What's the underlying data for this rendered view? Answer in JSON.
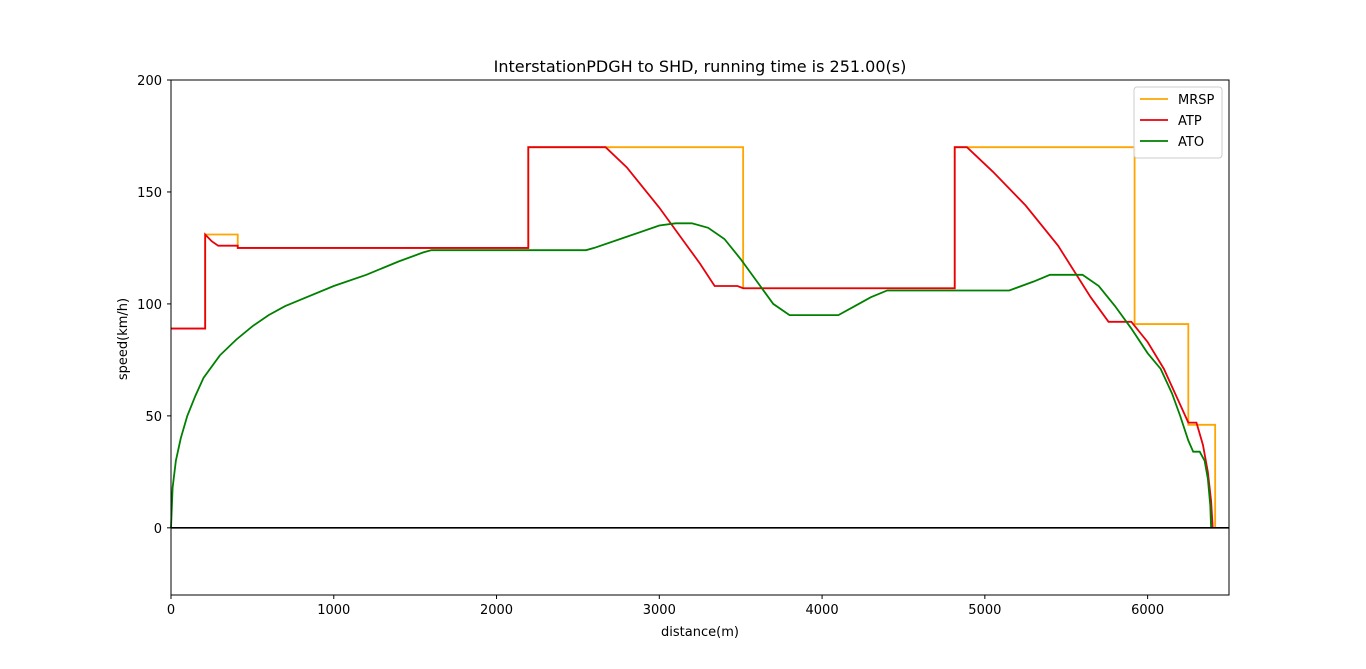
{
  "chart_data": {
    "type": "line",
    "title": "InterstationPDGH to SHD, running time is 251.00(s)",
    "xlabel": "distance(m)",
    "ylabel": "speed(km/h)",
    "xlim": [
      0,
      6500
    ],
    "ylim": [
      -30,
      200
    ],
    "xticks": [
      0,
      1000,
      2000,
      3000,
      4000,
      5000,
      6000
    ],
    "yticks": [
      0,
      50,
      100,
      150,
      200
    ],
    "legend_position": "top-right",
    "grid": false,
    "zero_line": true,
    "series": [
      {
        "name": "MRSP",
        "color": "#ffa500",
        "style": "step",
        "points": [
          [
            0,
            89
          ],
          [
            210,
            89
          ],
          [
            210,
            131
          ],
          [
            410,
            131
          ],
          [
            410,
            125
          ],
          [
            2195,
            125
          ],
          [
            2195,
            170
          ],
          [
            3515,
            170
          ],
          [
            3515,
            107
          ],
          [
            4815,
            107
          ],
          [
            4815,
            170
          ],
          [
            5920,
            170
          ],
          [
            5920,
            91
          ],
          [
            6250,
            91
          ],
          [
            6250,
            46
          ],
          [
            6415,
            46
          ],
          [
            6415,
            0
          ]
        ]
      },
      {
        "name": "ATP",
        "color": "#e8000b",
        "style": "step",
        "points": [
          [
            0,
            89
          ],
          [
            210,
            89
          ],
          [
            210,
            131
          ],
          [
            250,
            128
          ],
          [
            290,
            126
          ],
          [
            410,
            126
          ],
          [
            410,
            125
          ],
          [
            2195,
            125
          ],
          [
            2195,
            170
          ],
          [
            2670,
            170
          ],
          [
            2800,
            161
          ],
          [
            3000,
            143
          ],
          [
            3150,
            128
          ],
          [
            3250,
            118
          ],
          [
            3340,
            108
          ],
          [
            3480,
            108
          ],
          [
            3515,
            107
          ],
          [
            4815,
            107
          ],
          [
            4815,
            170
          ],
          [
            4890,
            170
          ],
          [
            5050,
            159
          ],
          [
            5250,
            144
          ],
          [
            5450,
            126
          ],
          [
            5650,
            103
          ],
          [
            5760,
            92
          ],
          [
            5900,
            92
          ],
          [
            6000,
            83
          ],
          [
            6100,
            71
          ],
          [
            6200,
            55
          ],
          [
            6250,
            47
          ],
          [
            6300,
            47
          ],
          [
            6340,
            37
          ],
          [
            6370,
            25
          ],
          [
            6390,
            12
          ],
          [
            6400,
            0
          ]
        ]
      },
      {
        "name": "ATO",
        "color": "#008000",
        "style": "line",
        "points": [
          [
            0,
            0
          ],
          [
            10,
            18
          ],
          [
            30,
            30
          ],
          [
            60,
            40
          ],
          [
            100,
            50
          ],
          [
            150,
            59
          ],
          [
            200,
            67
          ],
          [
            300,
            77
          ],
          [
            400,
            84
          ],
          [
            500,
            90
          ],
          [
            600,
            95
          ],
          [
            700,
            99
          ],
          [
            800,
            102
          ],
          [
            1000,
            108
          ],
          [
            1200,
            113
          ],
          [
            1400,
            119
          ],
          [
            1550,
            123
          ],
          [
            1600,
            124
          ],
          [
            2550,
            124
          ],
          [
            2600,
            125
          ],
          [
            2800,
            130
          ],
          [
            3000,
            135
          ],
          [
            3100,
            136
          ],
          [
            3200,
            136
          ],
          [
            3300,
            134
          ],
          [
            3400,
            129
          ],
          [
            3500,
            120
          ],
          [
            3600,
            110
          ],
          [
            3700,
            100
          ],
          [
            3800,
            95
          ],
          [
            4100,
            95
          ],
          [
            4200,
            99
          ],
          [
            4300,
            103
          ],
          [
            4400,
            106
          ],
          [
            4500,
            106
          ],
          [
            5150,
            106
          ],
          [
            5300,
            110
          ],
          [
            5400,
            113
          ],
          [
            5600,
            113
          ],
          [
            5700,
            108
          ],
          [
            5800,
            99
          ],
          [
            5900,
            89
          ],
          [
            6000,
            78
          ],
          [
            6080,
            71
          ],
          [
            6150,
            60
          ],
          [
            6200,
            50
          ],
          [
            6250,
            39
          ],
          [
            6280,
            34
          ],
          [
            6320,
            34
          ],
          [
            6350,
            30
          ],
          [
            6370,
            22
          ],
          [
            6385,
            10
          ],
          [
            6390,
            0
          ]
        ]
      }
    ]
  }
}
